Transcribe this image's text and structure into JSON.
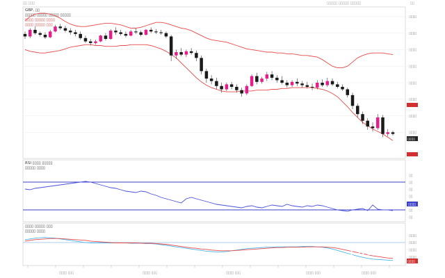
{
  "window": {
    "top_left": "▯▯ ▯▯▯",
    "top_right": "▯▯▯▯▯ ▯▯▯▯▯ ▯▯▯▯▯",
    "close": "▯▯"
  },
  "price_panel": {
    "header": [
      "GBP, ▯▯",
      "▯▯▯▯▯ ▯▯▯▯▯ ▯▯▯▯▯ ▯▯▯▯▯",
      "▯▯▯▯ ▯▯▯▯▯ ▯▯▯▯",
      "▯▯▯▯ ▯▯▯▯▯ ▯▯▯"
    ],
    "last_label": "▯▯▯▯"
  },
  "rsi_panel": {
    "header": [
      "RSI ▯▯▯▯ ▯▯▯▯▯",
      "▯▯▯▯▯ ▯▯▯▯"
    ]
  },
  "macd_panel": {
    "header": [
      "▯▯▯▯ ▯▯▯▯▯ ▯▯▯",
      "▯▯▯▯▯ ▯▯▯▯"
    ]
  },
  "watermark": "FX678",
  "colors": {
    "bull": "#e61e8c",
    "bear": "#1a1a1a",
    "band": "#e84a4a",
    "rsi": "#4a4fd8",
    "level": "#3b3fc9",
    "macd_fast": "#48b4e8",
    "macd_slow": "#e84a4a",
    "tag_red": "#d23030",
    "tag_dark": "#222222",
    "tag_blue": "#3b3fc9"
  },
  "chart_data": [
    {
      "type": "candlestick",
      "ylim": [
        1.21,
        1.39
      ],
      "yticks": [
        "▯▯▯▯",
        "▯▯▯▯",
        "▯▯▯▯",
        "▯▯▯▯",
        "▯▯▯▯",
        "▯▯▯▯",
        "▯▯▯▯",
        "▯▯▯▯"
      ],
      "ytick_values": [
        1.38,
        1.36,
        1.34,
        1.32,
        1.3,
        1.28,
        1.26,
        1.24
      ],
      "candles": [
        [
          1.359,
          1.362,
          1.353,
          1.356
        ],
        [
          1.356,
          1.366,
          1.354,
          1.364
        ],
        [
          1.364,
          1.368,
          1.358,
          1.36
        ],
        [
          1.36,
          1.362,
          1.356,
          1.358
        ],
        [
          1.358,
          1.361,
          1.353,
          1.355
        ],
        [
          1.355,
          1.364,
          1.354,
          1.362
        ],
        [
          1.362,
          1.37,
          1.361,
          1.368
        ],
        [
          1.368,
          1.371,
          1.364,
          1.366
        ],
        [
          1.366,
          1.369,
          1.361,
          1.363
        ],
        [
          1.363,
          1.366,
          1.358,
          1.361
        ],
        [
          1.361,
          1.364,
          1.356,
          1.359
        ],
        [
          1.359,
          1.362,
          1.352,
          1.354
        ],
        [
          1.354,
          1.357,
          1.348,
          1.35
        ],
        [
          1.35,
          1.353,
          1.345,
          1.348
        ],
        [
          1.348,
          1.352,
          1.346,
          1.35
        ],
        [
          1.35,
          1.358,
          1.349,
          1.357
        ],
        [
          1.357,
          1.36,
          1.351,
          1.353
        ],
        [
          1.353,
          1.365,
          1.352,
          1.363
        ],
        [
          1.363,
          1.367,
          1.358,
          1.361
        ],
        [
          1.361,
          1.364,
          1.357,
          1.359
        ],
        [
          1.359,
          1.362,
          1.355,
          1.357
        ],
        [
          1.357,
          1.364,
          1.356,
          1.362
        ],
        [
          1.362,
          1.366,
          1.359,
          1.361
        ],
        [
          1.361,
          1.363,
          1.356,
          1.358
        ],
        [
          1.358,
          1.365,
          1.357,
          1.364
        ],
        [
          1.364,
          1.367,
          1.36,
          1.362
        ],
        [
          1.362,
          1.365,
          1.359,
          1.361
        ],
        [
          1.361,
          1.364,
          1.358,
          1.36
        ],
        [
          1.36,
          1.362,
          1.354,
          1.356
        ],
        [
          1.356,
          1.358,
          1.326,
          1.333
        ],
        [
          1.333,
          1.34,
          1.329,
          1.337
        ],
        [
          1.337,
          1.342,
          1.332,
          1.334
        ],
        [
          1.334,
          1.34,
          1.331,
          1.338
        ],
        [
          1.338,
          1.342,
          1.334,
          1.336
        ],
        [
          1.336,
          1.339,
          1.326,
          1.33
        ],
        [
          1.33,
          1.333,
          1.31,
          1.314
        ],
        [
          1.314,
          1.317,
          1.3,
          1.305
        ],
        [
          1.305,
          1.309,
          1.298,
          1.302
        ],
        [
          1.302,
          1.306,
          1.292,
          1.296
        ],
        [
          1.296,
          1.3,
          1.288,
          1.292
        ],
        [
          1.292,
          1.3,
          1.29,
          1.298
        ],
        [
          1.298,
          1.301,
          1.292,
          1.295
        ],
        [
          1.295,
          1.298,
          1.288,
          1.291
        ],
        [
          1.291,
          1.294,
          1.283,
          1.287
        ],
        [
          1.287,
          1.298,
          1.285,
          1.296
        ],
        [
          1.296,
          1.31,
          1.295,
          1.308
        ],
        [
          1.308,
          1.312,
          1.298,
          1.301
        ],
        [
          1.301,
          1.307,
          1.299,
          1.305
        ],
        [
          1.305,
          1.313,
          1.302,
          1.31
        ],
        [
          1.31,
          1.314,
          1.303,
          1.306
        ],
        [
          1.306,
          1.309,
          1.3,
          1.303
        ],
        [
          1.303,
          1.308,
          1.298,
          1.3
        ],
        [
          1.3,
          1.303,
          1.294,
          1.297
        ],
        [
          1.297,
          1.303,
          1.295,
          1.301
        ],
        [
          1.301,
          1.305,
          1.296,
          1.299
        ],
        [
          1.299,
          1.302,
          1.294,
          1.297
        ],
        [
          1.297,
          1.301,
          1.293,
          1.295
        ],
        [
          1.295,
          1.299,
          1.291,
          1.294
        ],
        [
          1.294,
          1.303,
          1.292,
          1.3
        ],
        [
          1.3,
          1.304,
          1.295,
          1.297
        ],
        [
          1.297,
          1.306,
          1.295,
          1.302
        ],
        [
          1.302,
          1.305,
          1.296,
          1.298
        ],
        [
          1.298,
          1.301,
          1.293,
          1.295
        ],
        [
          1.295,
          1.298,
          1.29,
          1.292
        ],
        [
          1.292,
          1.294,
          1.282,
          1.285
        ],
        [
          1.285,
          1.288,
          1.268,
          1.272
        ],
        [
          1.272,
          1.275,
          1.258,
          1.262
        ],
        [
          1.262,
          1.265,
          1.25,
          1.254
        ],
        [
          1.254,
          1.257,
          1.243,
          1.247
        ],
        [
          1.247,
          1.252,
          1.241,
          1.245
        ],
        [
          1.245,
          1.262,
          1.243,
          1.258
        ],
        [
          1.258,
          1.261,
          1.234,
          1.238
        ],
        [
          1.238,
          1.244,
          1.235,
          1.24
        ],
        [
          1.24,
          1.242,
          1.236,
          1.238
        ]
      ],
      "bb_upper": [
        1.375,
        1.38,
        1.383,
        1.384,
        1.384,
        1.383,
        1.381,
        1.378,
        1.374,
        1.371,
        1.369,
        1.368,
        1.368,
        1.369,
        1.37,
        1.371,
        1.372,
        1.372,
        1.371,
        1.37,
        1.368,
        1.366,
        1.366,
        1.367,
        1.369,
        1.371,
        1.373,
        1.373,
        1.372,
        1.37,
        1.368,
        1.366,
        1.365,
        1.363,
        1.36,
        1.357,
        1.354,
        1.352,
        1.351,
        1.35,
        1.349,
        1.347,
        1.345,
        1.343,
        1.341,
        1.34,
        1.339,
        1.338,
        1.337,
        1.337,
        1.336,
        1.336,
        1.335,
        1.335,
        1.334,
        1.333,
        1.333,
        1.332,
        1.331,
        1.328,
        1.324,
        1.32,
        1.318,
        1.318,
        1.32,
        1.325,
        1.33,
        1.333,
        1.335,
        1.336,
        1.336,
        1.336,
        1.335,
        1.334
      ],
      "bb_lower": [
        1.34,
        1.338,
        1.337,
        1.336,
        1.336,
        1.337,
        1.338,
        1.339,
        1.341,
        1.343,
        1.344,
        1.345,
        1.346,
        1.346,
        1.345,
        1.345,
        1.344,
        1.344,
        1.344,
        1.345,
        1.345,
        1.346,
        1.346,
        1.346,
        1.346,
        1.345,
        1.343,
        1.341,
        1.338,
        1.334,
        1.33,
        1.324,
        1.318,
        1.312,
        1.306,
        1.301,
        1.297,
        1.294,
        1.292,
        1.29,
        1.289,
        1.289,
        1.289,
        1.29,
        1.29,
        1.29,
        1.291,
        1.291,
        1.291,
        1.292,
        1.292,
        1.293,
        1.293,
        1.294,
        1.294,
        1.294,
        1.294,
        1.294,
        1.293,
        1.292,
        1.29,
        1.287,
        1.283,
        1.277,
        1.271,
        1.264,
        1.258,
        1.252,
        1.248,
        1.244,
        1.241,
        1.238,
        1.234,
        1.23
      ]
    },
    {
      "type": "line",
      "ylim": [
        0,
        100
      ],
      "levels": [
        70,
        30
      ],
      "yticks": [
        "▯▯",
        "▯▯",
        "▯▯",
        "▯▯",
        "▯▯",
        "▯▯",
        "▯▯"
      ],
      "ytick_values": [
        80,
        70,
        60,
        50,
        40,
        30,
        20
      ],
      "last_label": "▯▯▯▯",
      "values": [
        60,
        59,
        61,
        62,
        63,
        64,
        65,
        66,
        67,
        68,
        69,
        70,
        71,
        70,
        68,
        66,
        64,
        62,
        61,
        59,
        57,
        56,
        55,
        57,
        56,
        53,
        51,
        48,
        46,
        44,
        42,
        40,
        46,
        48,
        46,
        44,
        42,
        40,
        38,
        37,
        36,
        35,
        34,
        33,
        35,
        36,
        34,
        33,
        35,
        37,
        36,
        35,
        38,
        36,
        35,
        34,
        36,
        35,
        37,
        36,
        34,
        32,
        30,
        29,
        28,
        30,
        31,
        32,
        29,
        37,
        31,
        30,
        30,
        29
      ]
    },
    {
      "type": "line",
      "ylim": [
        -0.06,
        0.025
      ],
      "zero": 0,
      "yticks": [
        "▯▯▯▯",
        "▯▯▯▯",
        "▯▯▯▯",
        "▯▯▯▯"
      ],
      "ytick_values": [
        0.02,
        0.0,
        -0.02,
        -0.04
      ],
      "last_label": "▯▯▯▯",
      "series": [
        {
          "values": [
            0.008,
            0.01,
            0.012,
            0.013,
            0.014,
            0.013,
            0.012,
            0.01,
            0.008,
            0.006,
            0.004,
            0.002,
            0.0,
            -0.001,
            -0.001,
            -0.001,
            -0.001,
            -0.001,
            -0.001,
            -0.001,
            -0.001,
            -0.002,
            -0.002,
            -0.002,
            -0.003,
            -0.003,
            -0.004,
            -0.006,
            -0.008,
            -0.01,
            -0.012,
            -0.014,
            -0.016,
            -0.018,
            -0.02,
            -0.022,
            -0.024,
            -0.025,
            -0.026,
            -0.026,
            -0.025,
            -0.023,
            -0.021,
            -0.019,
            -0.017,
            -0.016,
            -0.015,
            -0.014,
            -0.013,
            -0.013,
            -0.012,
            -0.012,
            -0.012,
            -0.012,
            -0.012,
            -0.011,
            -0.011,
            -0.011,
            -0.012,
            -0.013,
            -0.015,
            -0.018,
            -0.022,
            -0.026,
            -0.03,
            -0.034,
            -0.038,
            -0.041,
            -0.044,
            -0.046,
            -0.047,
            -0.048,
            -0.049,
            -0.05
          ]
        },
        {
          "values": [
            0.004,
            0.006,
            0.008,
            0.009,
            0.01,
            0.011,
            0.011,
            0.011,
            0.01,
            0.009,
            0.008,
            0.007,
            0.006,
            0.004,
            0.003,
            0.002,
            0.001,
            0.0,
            -0.001,
            -0.001,
            -0.001,
            -0.001,
            -0.001,
            -0.002,
            -0.002,
            -0.002,
            -0.003,
            -0.004,
            -0.005,
            -0.007,
            -0.009,
            -0.011,
            -0.013,
            -0.015,
            -0.016,
            -0.018,
            -0.019,
            -0.021,
            -0.022,
            -0.023,
            -0.023,
            -0.023,
            -0.022,
            -0.021,
            -0.02,
            -0.019,
            -0.018,
            -0.017,
            -0.016,
            -0.015,
            -0.014,
            -0.014,
            -0.013,
            -0.013,
            -0.013,
            -0.013,
            -0.012,
            -0.012,
            -0.012,
            -0.012,
            -0.013,
            -0.014,
            -0.016,
            -0.019,
            -0.022,
            -0.025,
            -0.028,
            -0.031,
            -0.034,
            -0.037,
            -0.039,
            -0.041,
            -0.043,
            -0.044
          ]
        }
      ]
    }
  ],
  "x_axis": {
    "labels": [
      "▯▯▯▯ ▯▯▯",
      "▯▯▯▯ ▯▯▯",
      "▯▯▯▯ ▯▯▯",
      "▯▯▯▯ ▯▯▯",
      "▯▯▯▯ ▯▯▯"
    ]
  }
}
